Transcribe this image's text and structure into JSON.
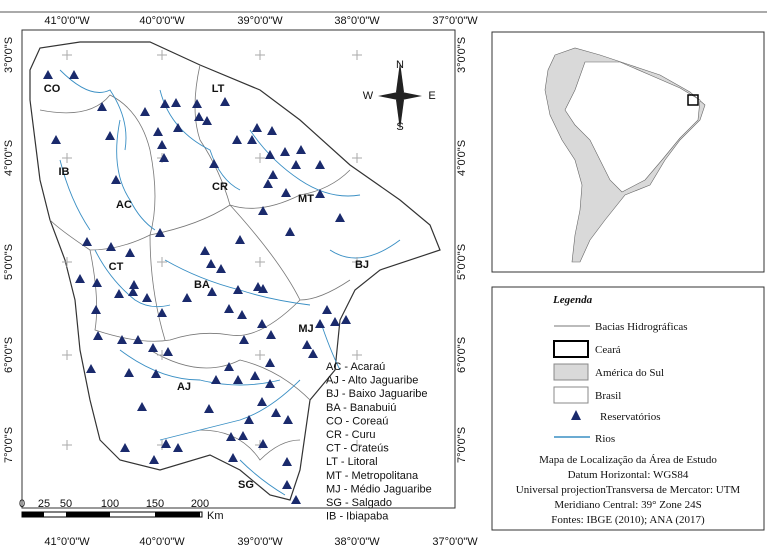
{
  "map": {
    "top_labels": [
      "41°0'0\"W",
      "40°0'0\"W",
      "39°0'0\"W",
      "38°0'0\"W",
      "37°0'0\"W"
    ],
    "bottom_labels": [
      "41°0'0\"W",
      "40°0'0\"W",
      "39°0'0\"W",
      "38°0'0\"W",
      "37°0'0\"W"
    ],
    "left_labels": [
      "3°0'0\"S",
      "4°0'0\"S",
      "5°0'0\"S",
      "6°0'0\"S",
      "7°0'0\"S"
    ],
    "right_labels": [
      "3°0'0\"S",
      "4°0'0\"S",
      "5°0'0\"S",
      "6°0'0\"S",
      "7°0'0\"S"
    ],
    "regions": [
      "CO",
      "LT",
      "IB",
      "CR",
      "AC",
      "MT",
      "BJ",
      "CT",
      "BA",
      "MJ",
      "AJ",
      "SG"
    ],
    "basin_list": [
      "AC - Acaraú",
      "AJ - Alto Jaguaribe",
      "BJ - Baixo Jaguaribe",
      "BA - Banabuiú",
      "CO - Coreaú",
      "CR - Curu",
      "CT - Crateús",
      "LT - Litoral",
      "MT - Metropolitana",
      "MJ - Médio Jaguaribe",
      "SG - Salgado",
      "IB - Ibiapaba"
    ],
    "scale": [
      "0",
      "25",
      "50",
      "100",
      "150",
      "200",
      "Km"
    ],
    "compass": [
      "N",
      "S",
      "E",
      "W"
    ]
  },
  "legend": {
    "title": "Legenda",
    "items": [
      "Bacias Hidrográficas",
      "Ceará",
      "América do Sul",
      "Brasil",
      "Reservatórios",
      "Rios"
    ]
  },
  "info": [
    "Mapa de Localização da Área de Estudo",
    "Datum Horizontal: WGS84",
    "Universal projectionTransversa de Mercator: UTM",
    "Meridiano Central: 39° Zone 24S",
    "Fontes: IBGE (2010); ANA (2017)"
  ]
}
